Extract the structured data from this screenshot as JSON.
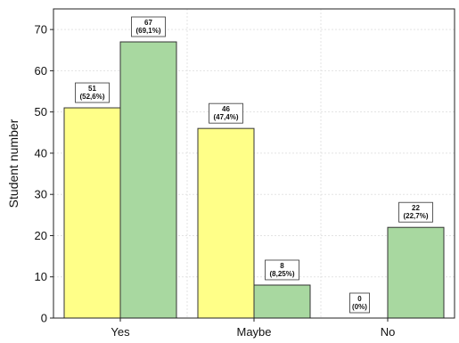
{
  "chart_data": {
    "type": "bar",
    "title": "",
    "xlabel": "",
    "ylabel": "Student number",
    "ylim": [
      0,
      75
    ],
    "yticks": [
      0,
      10,
      20,
      30,
      40,
      50,
      60,
      70
    ],
    "categories": [
      "Yes",
      "Maybe",
      "No"
    ],
    "grid": true,
    "legend": "none",
    "series": [
      {
        "color": "#ffff88",
        "values": [
          51,
          46,
          0
        ],
        "labels": [
          [
            "51",
            "(52,6%)"
          ],
          [
            "46",
            "(47,4%)"
          ],
          [
            "0",
            "(0%)"
          ]
        ]
      },
      {
        "color": "#a8d8a0",
        "values": [
          67,
          8,
          22
        ],
        "labels": [
          [
            "67",
            "(69,1%)"
          ],
          [
            "8",
            "(8,25%)"
          ],
          [
            "22",
            "(22,7%)"
          ]
        ]
      }
    ]
  }
}
